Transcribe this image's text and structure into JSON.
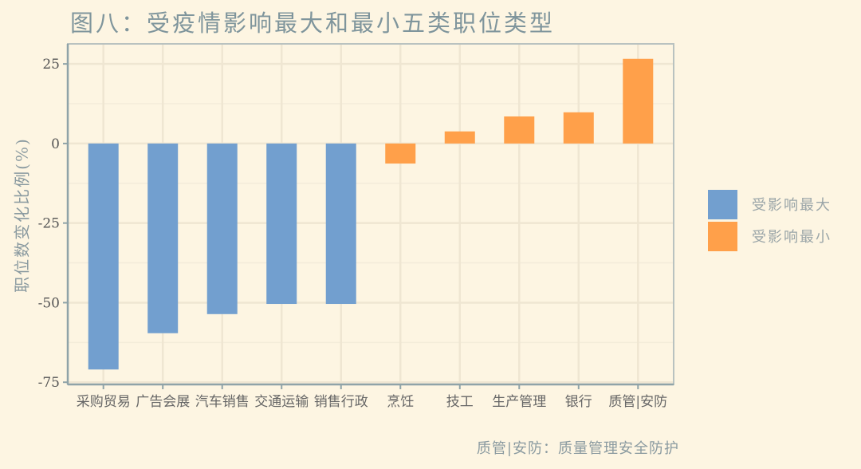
{
  "chart_data": {
    "type": "bar",
    "title": "图八：受疫情影响最大和最小五类职位类型",
    "ylabel": "职位数变化比例(%)",
    "xlabel": "",
    "categories": [
      "采购贸易",
      "广告会展",
      "汽车销售",
      "交通运输",
      "销售行政",
      "烹饪",
      "技工",
      "生产管理",
      "银行",
      "质管|安防"
    ],
    "values": [
      -71,
      -59.6,
      -53.6,
      -50.4,
      -50.4,
      -6.3,
      3.8,
      8.5,
      9.8,
      26.6
    ],
    "groups": [
      "受影响最大",
      "受影响最大",
      "受影响最大",
      "受影响最大",
      "受影响最大",
      "受影响最小",
      "受影响最小",
      "受影响最小",
      "受影响最小",
      "受影响最小"
    ],
    "series": [
      {
        "name": "受影响最大",
        "color": "#729fcf"
      },
      {
        "name": "受影响最小",
        "color": "#ffa04a"
      }
    ],
    "yticks": [
      25,
      0,
      -25,
      -50,
      -75
    ],
    "ylim": [
      -75.7,
      31.3
    ],
    "grid": true,
    "legend": "right",
    "caption": "质管|安防：质量管理安全防护"
  }
}
